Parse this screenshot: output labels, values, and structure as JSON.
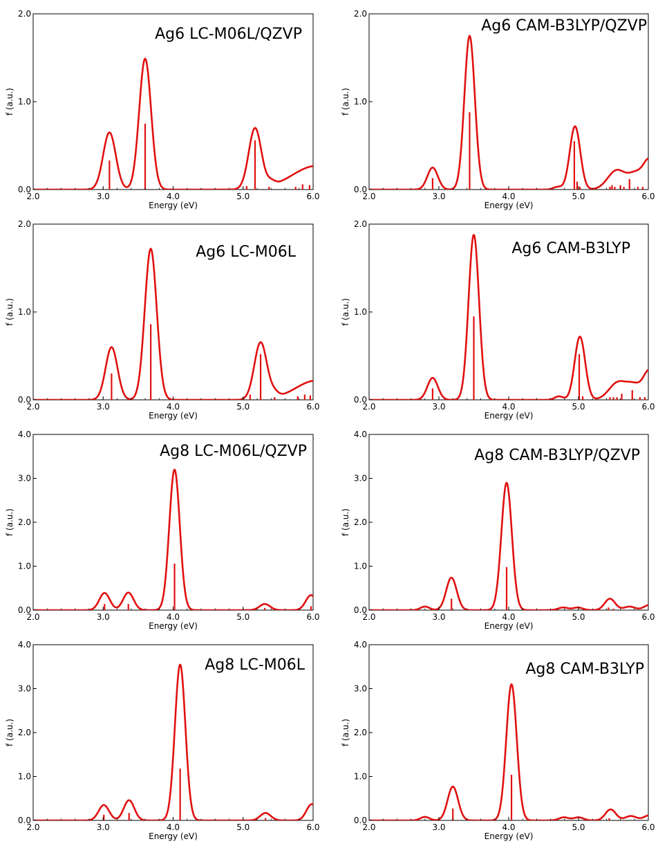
{
  "colors": {
    "spectrum": "#e01010",
    "axis": "#000000"
  },
  "xlabel": "Energy (eV)",
  "ylabel": "f (a.u.)",
  "xticks": [
    "2.0",
    "3.0",
    "4.0",
    "5.0",
    "6.0"
  ],
  "chart_data": [
    {
      "type": "line",
      "title": "Ag6  LC-M06L/QZVP",
      "xlabel": "Energy (eV)",
      "ylabel": "f (a.u.)",
      "xlim": [
        2.0,
        6.0
      ],
      "ylim": [
        0,
        2.0
      ],
      "yticks": [
        "0.0",
        "1.0",
        "2.0"
      ],
      "grid": false,
      "peaks": [
        {
          "x": 3.09,
          "h": 0.65,
          "w": 0.09
        },
        {
          "x": 3.6,
          "h": 1.49,
          "w": 0.085
        },
        {
          "x": 5.17,
          "h": 0.69,
          "w": 0.09
        },
        {
          "x": 5.4,
          "h": 0.05,
          "w": 0.06
        },
        {
          "x": 6.05,
          "h": 0.27,
          "w": 0.35
        }
      ],
      "sticks": [
        {
          "x": 3.09,
          "y": 0.33
        },
        {
          "x": 3.6,
          "y": 0.75
        },
        {
          "x": 5.05,
          "y": 0.04
        },
        {
          "x": 5.17,
          "y": 0.56
        },
        {
          "x": 5.37,
          "y": 0.03
        },
        {
          "x": 5.75,
          "y": 0.03
        },
        {
          "x": 5.85,
          "y": 0.06
        },
        {
          "x": 5.95,
          "y": 0.05
        }
      ]
    },
    {
      "type": "line",
      "title": "Ag6  CAM-B3LYP/QZVP",
      "xlabel": "Energy (eV)",
      "ylabel": "f (a.u.)",
      "xlim": [
        2.0,
        6.0
      ],
      "ylim": [
        0,
        2.0
      ],
      "yticks": [
        "0.0",
        "1.0",
        "2.0"
      ],
      "grid": false,
      "peaks": [
        {
          "x": 2.91,
          "h": 0.25,
          "w": 0.075
        },
        {
          "x": 3.44,
          "h": 1.75,
          "w": 0.075
        },
        {
          "x": 4.7,
          "h": 0.03,
          "w": 0.06
        },
        {
          "x": 4.95,
          "h": 0.72,
          "w": 0.075
        },
        {
          "x": 5.55,
          "h": 0.22,
          "w": 0.13
        },
        {
          "x": 5.82,
          "h": 0.16,
          "w": 0.1
        },
        {
          "x": 6.02,
          "h": 0.33,
          "w": 0.09
        }
      ],
      "sticks": [
        {
          "x": 2.91,
          "y": 0.13
        },
        {
          "x": 3.44,
          "y": 0.88
        },
        {
          "x": 4.94,
          "y": 0.55
        },
        {
          "x": 4.98,
          "y": 0.09
        },
        {
          "x": 5.02,
          "y": 0.03
        },
        {
          "x": 5.45,
          "y": 0.03
        },
        {
          "x": 5.48,
          "y": 0.05
        },
        {
          "x": 5.52,
          "y": 0.03
        },
        {
          "x": 5.6,
          "y": 0.05
        },
        {
          "x": 5.65,
          "y": 0.03
        },
        {
          "x": 5.73,
          "y": 0.12
        },
        {
          "x": 5.85,
          "y": 0.03
        },
        {
          "x": 5.92,
          "y": 0.03
        }
      ]
    },
    {
      "type": "line",
      "title": "Ag6  LC-M06L",
      "xlabel": "Energy (eV)",
      "ylabel": "f (a.u.)",
      "xlim": [
        2.0,
        6.0
      ],
      "ylim": [
        0,
        2.0
      ],
      "yticks": [
        "0.0",
        "1.0",
        "2.0"
      ],
      "grid": false,
      "peaks": [
        {
          "x": 3.12,
          "h": 0.6,
          "w": 0.085
        },
        {
          "x": 3.68,
          "h": 1.72,
          "w": 0.085
        },
        {
          "x": 5.25,
          "h": 0.65,
          "w": 0.09
        },
        {
          "x": 5.45,
          "h": 0.05,
          "w": 0.06
        },
        {
          "x": 6.05,
          "h": 0.22,
          "w": 0.3
        }
      ],
      "sticks": [
        {
          "x": 3.12,
          "y": 0.3
        },
        {
          "x": 3.68,
          "y": 0.86
        },
        {
          "x": 5.1,
          "y": 0.06
        },
        {
          "x": 5.25,
          "y": 0.52
        },
        {
          "x": 5.45,
          "y": 0.03
        },
        {
          "x": 5.78,
          "y": 0.04
        },
        {
          "x": 5.88,
          "y": 0.06
        },
        {
          "x": 5.96,
          "y": 0.05
        }
      ]
    },
    {
      "type": "line",
      "title": "Ag6  CAM-B3LYP",
      "xlabel": "Energy (eV)",
      "ylabel": "f (a.u.)",
      "xlim": [
        2.0,
        6.0
      ],
      "ylim": [
        0,
        2.0
      ],
      "yticks": [
        "0.0",
        "1.0",
        "2.0"
      ],
      "grid": false,
      "peaks": [
        {
          "x": 2.91,
          "h": 0.25,
          "w": 0.075
        },
        {
          "x": 3.5,
          "h": 1.88,
          "w": 0.075
        },
        {
          "x": 4.72,
          "h": 0.04,
          "w": 0.06
        },
        {
          "x": 5.02,
          "h": 0.72,
          "w": 0.075
        },
        {
          "x": 5.57,
          "h": 0.2,
          "w": 0.13
        },
        {
          "x": 5.8,
          "h": 0.14,
          "w": 0.1
        },
        {
          "x": 6.02,
          "h": 0.33,
          "w": 0.09
        }
      ],
      "sticks": [
        {
          "x": 2.91,
          "y": 0.13
        },
        {
          "x": 3.5,
          "y": 0.95
        },
        {
          "x": 5.01,
          "y": 0.52
        },
        {
          "x": 5.06,
          "y": 0.04
        },
        {
          "x": 5.45,
          "y": 0.03
        },
        {
          "x": 5.5,
          "y": 0.03
        },
        {
          "x": 5.55,
          "y": 0.03
        },
        {
          "x": 5.62,
          "y": 0.07
        },
        {
          "x": 5.77,
          "y": 0.11
        },
        {
          "x": 5.88,
          "y": 0.03
        },
        {
          "x": 5.95,
          "y": 0.03
        }
      ]
    },
    {
      "type": "line",
      "title": "Ag8  LC-M06L/QZVP",
      "xlabel": "Energy (eV)",
      "ylabel": "f (a.u.)",
      "xlim": [
        2.0,
        6.0
      ],
      "ylim": [
        0,
        4.0
      ],
      "yticks": [
        "0.0",
        "1.0",
        "2.0",
        "3.0",
        "4.0"
      ],
      "grid": false,
      "peaks": [
        {
          "x": 3.02,
          "h": 0.39,
          "w": 0.075
        },
        {
          "x": 3.36,
          "h": 0.4,
          "w": 0.075
        },
        {
          "x": 4.02,
          "h": 3.2,
          "w": 0.075
        },
        {
          "x": 5.31,
          "h": 0.14,
          "w": 0.075
        },
        {
          "x": 5.97,
          "h": 0.34,
          "w": 0.075
        }
      ],
      "sticks": [
        {
          "x": 3.02,
          "y": 0.14
        },
        {
          "x": 3.36,
          "y": 0.14
        },
        {
          "x": 4.02,
          "y": 1.06
        },
        {
          "x": 5.31,
          "y": 0.05
        },
        {
          "x": 5.97,
          "y": 0.09
        }
      ]
    },
    {
      "type": "line",
      "title": "Ag8  CAM-B3LYP/QZVP",
      "xlabel": "Energy (eV)",
      "ylabel": "f (a.u.)",
      "xlim": [
        2.0,
        6.0
      ],
      "ylim": [
        0,
        4.0
      ],
      "yticks": [
        "0.0",
        "1.0",
        "2.0",
        "3.0",
        "4.0"
      ],
      "grid": false,
      "peaks": [
        {
          "x": 2.8,
          "h": 0.08,
          "w": 0.065
        },
        {
          "x": 3.18,
          "h": 0.74,
          "w": 0.075
        },
        {
          "x": 3.97,
          "h": 2.9,
          "w": 0.075
        },
        {
          "x": 4.78,
          "h": 0.06,
          "w": 0.07
        },
        {
          "x": 4.99,
          "h": 0.06,
          "w": 0.07
        },
        {
          "x": 5.45,
          "h": 0.26,
          "w": 0.075
        },
        {
          "x": 5.73,
          "h": 0.08,
          "w": 0.08
        },
        {
          "x": 6.02,
          "h": 0.12,
          "w": 0.08
        }
      ],
      "sticks": [
        {
          "x": 3.18,
          "y": 0.26
        },
        {
          "x": 3.97,
          "y": 0.98
        },
        {
          "x": 5.43,
          "y": 0.06
        },
        {
          "x": 5.5,
          "y": 0.03
        }
      ]
    },
    {
      "type": "line",
      "title": "Ag8  LC-M06L",
      "xlabel": "Energy (eV)",
      "ylabel": "f (a.u.)",
      "xlim": [
        2.0,
        6.0
      ],
      "ylim": [
        0,
        4.0
      ],
      "yticks": [
        "0.0",
        "1.0",
        "2.0",
        "3.0",
        "4.0"
      ],
      "grid": false,
      "peaks": [
        {
          "x": 3.01,
          "h": 0.35,
          "w": 0.075
        },
        {
          "x": 3.37,
          "h": 0.46,
          "w": 0.075
        },
        {
          "x": 4.1,
          "h": 3.55,
          "w": 0.075
        },
        {
          "x": 5.32,
          "h": 0.17,
          "w": 0.075
        },
        {
          "x": 5.98,
          "h": 0.37,
          "w": 0.075
        }
      ],
      "sticks": [
        {
          "x": 3.01,
          "y": 0.13
        },
        {
          "x": 3.37,
          "y": 0.17
        },
        {
          "x": 4.1,
          "y": 1.18
        },
        {
          "x": 5.32,
          "y": 0.05
        }
      ]
    },
    {
      "type": "line",
      "title": "Ag8  CAM-B3LYP",
      "xlabel": "Energy (eV)",
      "ylabel": "f (a.u.)",
      "xlim": [
        2.0,
        6.0
      ],
      "ylim": [
        0,
        4.0
      ],
      "yticks": [
        "0.0",
        "1.0",
        "2.0",
        "3.0",
        "4.0"
      ],
      "grid": false,
      "peaks": [
        {
          "x": 2.8,
          "h": 0.08,
          "w": 0.065
        },
        {
          "x": 3.2,
          "h": 0.77,
          "w": 0.075
        },
        {
          "x": 4.04,
          "h": 3.1,
          "w": 0.075
        },
        {
          "x": 4.79,
          "h": 0.07,
          "w": 0.07
        },
        {
          "x": 5.0,
          "h": 0.07,
          "w": 0.07
        },
        {
          "x": 5.46,
          "h": 0.25,
          "w": 0.075
        },
        {
          "x": 5.75,
          "h": 0.1,
          "w": 0.08
        },
        {
          "x": 6.02,
          "h": 0.12,
          "w": 0.08
        }
      ],
      "sticks": [
        {
          "x": 3.2,
          "y": 0.27
        },
        {
          "x": 4.04,
          "y": 1.04
        },
        {
          "x": 5.44,
          "y": 0.05
        }
      ]
    }
  ]
}
